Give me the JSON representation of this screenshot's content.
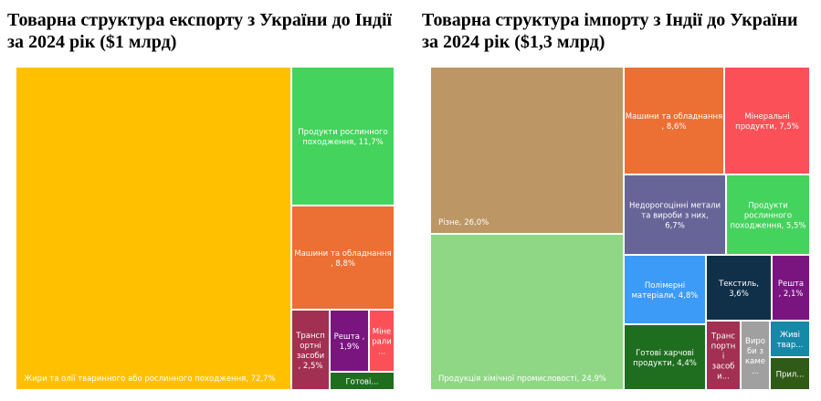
{
  "chart_data": [
    {
      "type": "treemap",
      "title": "Товарна структура експорту з України до Індії за 2024 рік ($1 млрд)",
      "items": [
        {
          "label": "Жири та олії тваринного або рослинного походження, 72,7%",
          "value": 72.7,
          "color": "#FFC000"
        },
        {
          "label": "Продукти рослинного походження, 11,7%",
          "value": 11.7,
          "color": "#44D35D"
        },
        {
          "label": "Машини та обладнання , 8,8%",
          "value": 8.8,
          "color": "#EC6F33"
        },
        {
          "label": "Транспортні засоби, 2,5%",
          "value": 2.5,
          "color": "#A23052"
        },
        {
          "label": "Решта , 1,9%",
          "value": 1.9,
          "color": "#7A1580"
        },
        {
          "label": "Мінерали...",
          "value": 1.6,
          "color": "#FB5058"
        },
        {
          "label": "Готові...",
          "value": 0.8,
          "color": "#1F6E20"
        }
      ]
    },
    {
      "type": "treemap",
      "title": "Товарна структура імпорту з Індії до України за 2024 рік ($1,3 млрд)",
      "items": [
        {
          "label": "Різне, 26,0%",
          "value": 26.0,
          "color": "#BC9664"
        },
        {
          "label": "Продукція хімічної промисловості, 24,9%",
          "value": 24.9,
          "color": "#8FD785"
        },
        {
          "label": "Машини та обладнання , 8,6%",
          "value": 8.6,
          "color": "#EC6F33"
        },
        {
          "label": "Мінеральні продукти, 7,5%",
          "value": 7.5,
          "color": "#FB5058"
        },
        {
          "label": "Недорогоцінні метали та вироби з них, 6,7%",
          "value": 6.7,
          "color": "#676598"
        },
        {
          "label": "Продукти рослинного походження, 5,5%",
          "value": 5.5,
          "color": "#44D35D"
        },
        {
          "label": "Полімерні матеріали, 4,8%",
          "value": 4.8,
          "color": "#3C9BF6"
        },
        {
          "label": "Текстиль, 3,6%",
          "value": 3.6,
          "color": "#10304A"
        },
        {
          "label": "Решта , 2,1%",
          "value": 2.1,
          "color": "#7A1580"
        },
        {
          "label": "Готові харчові продукти, 4,4%",
          "value": 4.4,
          "color": "#1F6E20"
        },
        {
          "label": "Транспортні засоби...",
          "value": 1.8,
          "color": "#A23052"
        },
        {
          "label": "Вироби з каме...",
          "value": 1.3,
          "color": "#A0A0A0"
        },
        {
          "label": "Живі твар...",
          "value": 1.6,
          "color": "#1688A8"
        },
        {
          "label": "Прил...",
          "value": 1.2,
          "color": "#305A18"
        }
      ]
    }
  ]
}
